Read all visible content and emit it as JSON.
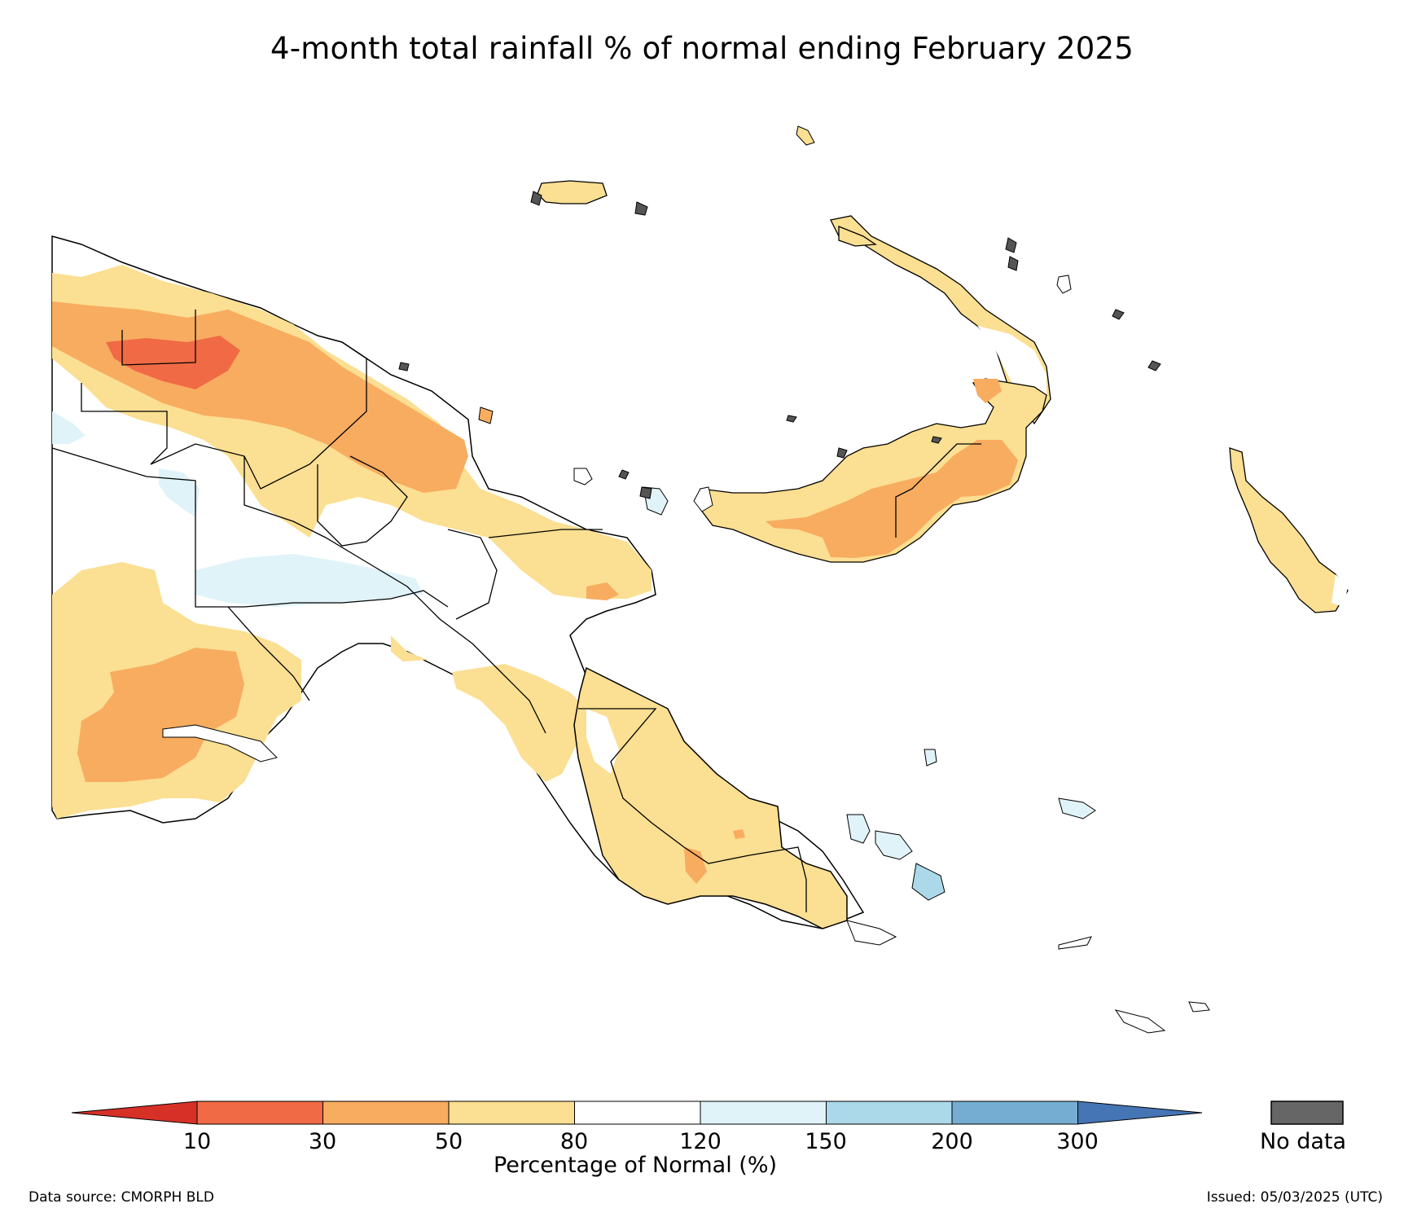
{
  "title": "4-month total rainfall % of normal ending February 2025",
  "colorbar": {
    "axis_label": "Percentage of Normal (%)",
    "ticks": [
      "10",
      "30",
      "50",
      "80",
      "120",
      "150",
      "200",
      "300"
    ],
    "colors": [
      "#f06a45",
      "#f8ac60",
      "#fbdf92",
      "#ffffff",
      "#e0f3f8",
      "#abd9e9",
      "#74add1"
    ],
    "low_extend_color": "#d73027",
    "high_extend_color": "#4575b4",
    "no_data_label": "No data",
    "no_data_color": "#666666"
  },
  "map_colors": {
    "very_dry": "#f06a45",
    "dry": "#f8ac60",
    "below": "#fbdf92",
    "normal": "#ffffff",
    "above": "#e0f3f8",
    "wetter": "#abd9e9",
    "no_data": "#555555"
  },
  "footer": {
    "source": "Data source: CMORPH BLD",
    "issued": "Issued: 05/03/2025 (UTC)"
  }
}
